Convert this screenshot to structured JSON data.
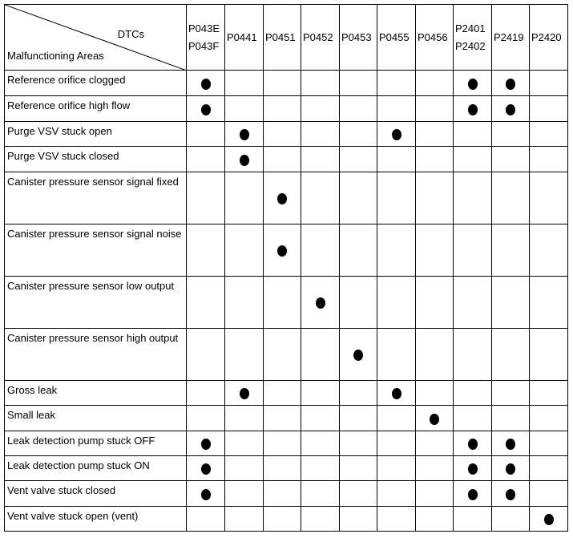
{
  "header": {
    "dtcs_label": "DTCs",
    "areas_label": "Malfunctioning Areas",
    "columns": [
      [
        "P043E",
        "P043F"
      ],
      [
        "P0441"
      ],
      [
        "P0451"
      ],
      [
        "P0452"
      ],
      [
        "P0453"
      ],
      [
        "P0455"
      ],
      [
        "P0456"
      ],
      [
        "P2401",
        "P2402"
      ],
      [
        "P2419"
      ],
      [
        "P2420"
      ]
    ]
  },
  "rows": [
    {
      "label": "Reference orifice clogged",
      "marks": [
        1,
        0,
        0,
        0,
        0,
        0,
        0,
        1,
        1,
        0
      ]
    },
    {
      "label": "Reference orifice high flow",
      "marks": [
        1,
        0,
        0,
        0,
        0,
        0,
        0,
        1,
        1,
        0
      ]
    },
    {
      "label": "Purge VSV stuck open",
      "marks": [
        0,
        1,
        0,
        0,
        0,
        1,
        0,
        0,
        0,
        0
      ]
    },
    {
      "label": "Purge VSV stuck closed",
      "marks": [
        0,
        1,
        0,
        0,
        0,
        0,
        0,
        0,
        0,
        0
      ]
    },
    {
      "label": "Canister pressure sensor signal fixed",
      "marks": [
        0,
        0,
        1,
        0,
        0,
        0,
        0,
        0,
        0,
        0
      ]
    },
    {
      "label": "Canister pressure sensor signal noise",
      "marks": [
        0,
        0,
        1,
        0,
        0,
        0,
        0,
        0,
        0,
        0
      ]
    },
    {
      "label": "Canister pressure sensor low output",
      "marks": [
        0,
        0,
        0,
        1,
        0,
        0,
        0,
        0,
        0,
        0
      ]
    },
    {
      "label": "Canister pressure sensor high output",
      "marks": [
        0,
        0,
        0,
        0,
        1,
        0,
        0,
        0,
        0,
        0
      ]
    },
    {
      "label": "Gross leak",
      "marks": [
        0,
        1,
        0,
        0,
        0,
        1,
        0,
        0,
        0,
        0
      ]
    },
    {
      "label": "Small leak",
      "marks": [
        0,
        0,
        0,
        0,
        0,
        0,
        1,
        0,
        0,
        0
      ]
    },
    {
      "label": "Leak detection pump stuck OFF",
      "marks": [
        1,
        0,
        0,
        0,
        0,
        0,
        0,
        1,
        1,
        0
      ]
    },
    {
      "label": "Leak detection pump stuck ON",
      "marks": [
        1,
        0,
        0,
        0,
        0,
        0,
        0,
        1,
        1,
        0
      ]
    },
    {
      "label": "Vent valve stuck closed",
      "marks": [
        1,
        0,
        0,
        0,
        0,
        0,
        0,
        1,
        1,
        0
      ]
    },
    {
      "label": "Vent valve stuck open (vent)",
      "marks": [
        0,
        0,
        0,
        0,
        0,
        0,
        0,
        0,
        0,
        1
      ]
    }
  ]
}
